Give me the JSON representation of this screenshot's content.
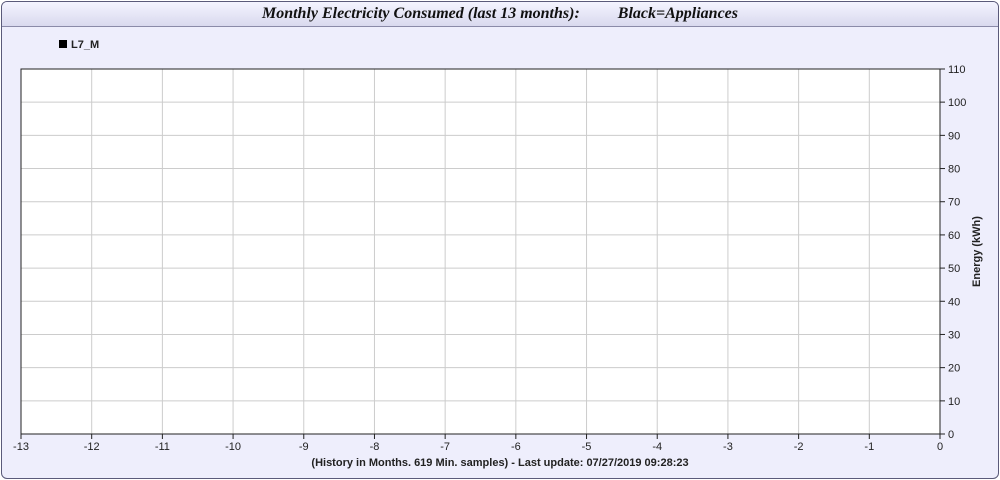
{
  "header": {
    "title": "Monthly Electricity Consumed (last 13 months):",
    "subtitle": "Black=Appliances"
  },
  "footer": {
    "note": "(History in Months. 619 Min. samples) - Last update: 07/27/2019 09:28:23"
  },
  "chart_data": {
    "type": "line",
    "title": "Monthly Electricity Consumed (last 13 months):",
    "subtitle": "Black=Appliances",
    "xlabel": "",
    "ylabel": "Energy (kWh)",
    "x_ticks": [
      -13,
      -12,
      -11,
      -10,
      -9,
      -8,
      -7,
      -6,
      -5,
      -4,
      -3,
      -2,
      -1,
      0
    ],
    "y_ticks": [
      0,
      10,
      20,
      30,
      40,
      50,
      60,
      70,
      80,
      90,
      100,
      110
    ],
    "xlim": [
      -13,
      0
    ],
    "ylim": [
      0,
      110
    ],
    "y_axis_side": "right",
    "grid": true,
    "legend_position": "top-left",
    "series": [
      {
        "name": "L7_M",
        "color": "#000000",
        "x": [],
        "values": []
      }
    ]
  }
}
